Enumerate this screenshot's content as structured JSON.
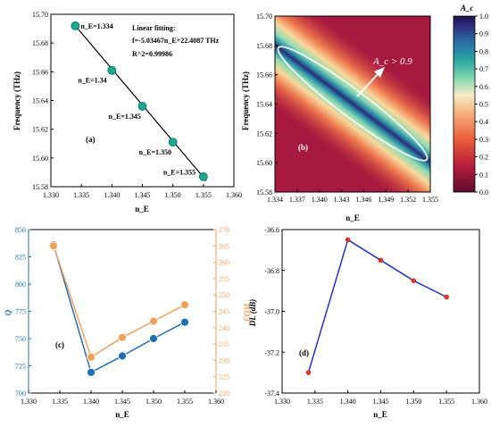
{
  "chart_data": [
    {
      "id": "a",
      "type": "scatter",
      "panel_label": "(a)",
      "xlabel": "n_E",
      "ylabel": "Frequency (THz)",
      "xlim": [
        1.33,
        1.36
      ],
      "ylim": [
        15.58,
        15.7
      ],
      "xticks": [
        "1.330",
        "1.335",
        "1.340",
        "1.345",
        "1.350",
        "1.355",
        "1.360"
      ],
      "yticks": [
        "15.58",
        "15.60",
        "15.62",
        "15.64",
        "15.66",
        "15.68",
        "15.70"
      ],
      "points": [
        {
          "x": 1.334,
          "y": 15.692,
          "label": "n_E=1.334"
        },
        {
          "x": 1.34,
          "y": 15.661,
          "label": "n_E=1.34"
        },
        {
          "x": 1.345,
          "y": 15.636,
          "label": "n_E=1.345"
        },
        {
          "x": 1.35,
          "y": 15.611,
          "label": "n_E=1.350"
        },
        {
          "x": 1.355,
          "y": 15.587,
          "label": "n_E=1.355"
        }
      ],
      "fit_line": {
        "x0": 1.334,
        "y0": 15.6921,
        "x1": 1.3555,
        "y1": 15.5841
      },
      "annotations": [
        "Linear fitting:",
        "f=-5.03467n_E+22.4087 THz",
        "R^2=0.99986"
      ],
      "marker_color": "#1aa890"
    },
    {
      "id": "b",
      "type": "heatmap",
      "panel_label": "(b)",
      "xlabel": "n_E",
      "ylabel": "Frequency (THz)",
      "xlim": [
        1.334,
        1.355
      ],
      "ylim": [
        15.58,
        15.7
      ],
      "xticks": [
        "1.334",
        "1.337",
        "1.340",
        "1.343",
        "1.346",
        "1.349",
        "1.352",
        "1.355"
      ],
      "yticks": [
        "15.58",
        "15.60",
        "15.62",
        "15.64",
        "15.66",
        "15.68",
        "15.70"
      ],
      "annotation": "A_c > 0.9",
      "colorbar": {
        "title": "A_c",
        "ticks": [
          "0.0",
          "0.1",
          "0.2",
          "0.3",
          "0.4",
          "0.5",
          "0.6",
          "0.7",
          "0.8",
          "0.9",
          "1.0"
        ],
        "range": [
          0.0,
          1.0
        ]
      }
    },
    {
      "id": "c",
      "type": "line",
      "panel_label": "(c)",
      "xlabel": "n_E",
      "ylabel_left": "Q",
      "ylabel_right": "FOM",
      "xlim": [
        1.33,
        1.36
      ],
      "ylim_left": [
        700,
        850
      ],
      "ylim_right": [
        220,
        270
      ],
      "xticks": [
        "1.330",
        "1.335",
        "1.340",
        "1.345",
        "1.350",
        "1.355",
        "1.360"
      ],
      "yticks_left": [
        "700",
        "725",
        "750",
        "775",
        "800",
        "825",
        "850"
      ],
      "yticks_right": [
        "220",
        "225",
        "230",
        "235",
        "240",
        "245",
        "250",
        "255",
        "260",
        "265",
        "270"
      ],
      "x": [
        1.334,
        1.34,
        1.345,
        1.35,
        1.355
      ],
      "series": [
        {
          "axis": "left",
          "color": "#1f6fb4",
          "values": [
            836,
            719,
            734,
            750,
            765
          ]
        },
        {
          "axis": "right",
          "color": "#f4a05a",
          "values": [
            265,
            231,
            237,
            242,
            247
          ]
        }
      ]
    },
    {
      "id": "d",
      "type": "line",
      "panel_label": "(d)",
      "xlabel": "n_E",
      "ylabel": "DL (dB)",
      "xlim": [
        1.33,
        1.36
      ],
      "ylim": [
        -37.4,
        -36.6
      ],
      "xticks": [
        "1.330",
        "1.335",
        "1.340",
        "1.345",
        "1.350",
        "1.355",
        "1.360"
      ],
      "yticks": [
        "-36.6",
        "-36.8",
        "-37.0",
        "-37.2",
        "-37.4"
      ],
      "x": [
        1.334,
        1.34,
        1.345,
        1.35,
        1.355
      ],
      "series": [
        {
          "color": "#1f33c7",
          "marker_color": "#e8352a",
          "values": [
            -37.3,
            -36.65,
            -36.75,
            -36.85,
            -36.93
          ]
        }
      ]
    }
  ]
}
